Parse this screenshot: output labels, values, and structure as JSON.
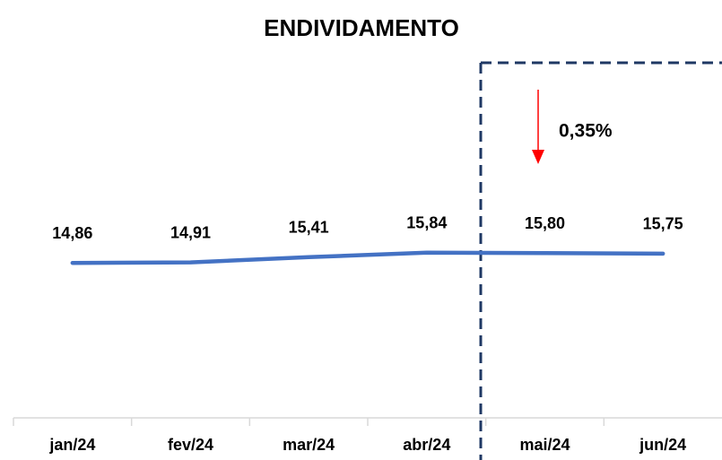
{
  "chart_data": {
    "type": "line",
    "title": "ENDIVIDAMENTO",
    "categories": [
      "jan/24",
      "fev/24",
      "mar/24",
      "abr/24",
      "mai/24",
      "jun/24"
    ],
    "series": [
      {
        "color": "#4472c4",
        "values": [
          14.86,
          14.91,
          15.41,
          15.84,
          15.8,
          15.75
        ],
        "value_labels": [
          "14,86",
          "14,91",
          "15,41",
          "15,84",
          "15,80",
          "15,75"
        ]
      }
    ],
    "ylim": [
      0,
      35
    ],
    "annotation": "0,35%",
    "annotation_color": "#ff0000"
  }
}
